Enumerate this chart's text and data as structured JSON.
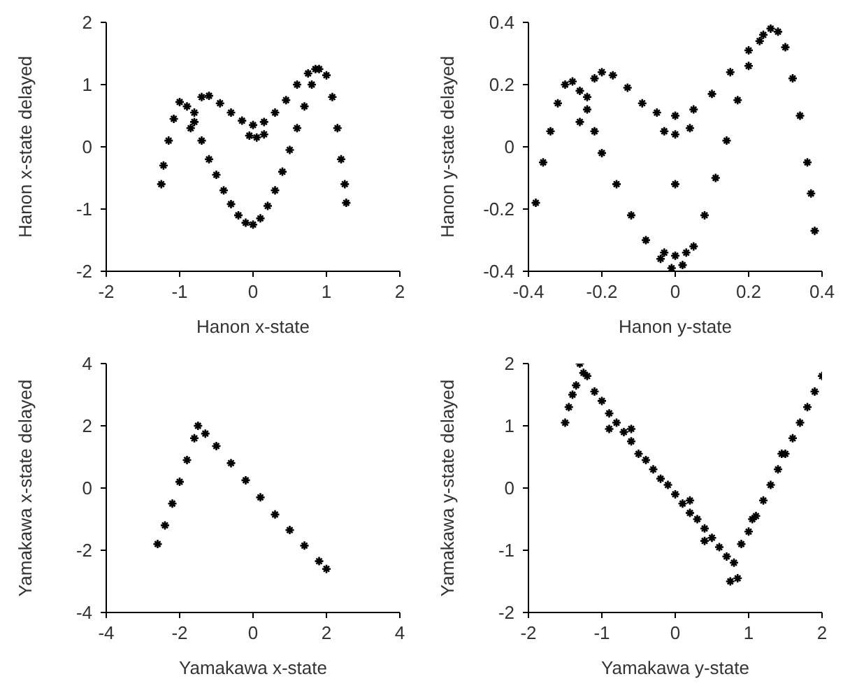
{
  "chart_data": [
    {
      "type": "scatter",
      "xlabel": "Hanon x-state",
      "ylabel": "Hanon x-state delayed",
      "xlim": [
        -2,
        2
      ],
      "ylim": [
        -2,
        2
      ],
      "xticks": [
        -2,
        -1,
        0,
        1,
        2
      ],
      "yticks": [
        -2,
        -1,
        0,
        1,
        2
      ],
      "grid": false,
      "legend": false,
      "marker": "cross",
      "series": [
        {
          "color": "#000000",
          "x": [
            -1.25,
            -1.22,
            -1.15,
            -1.08,
            -1.0,
            -0.9,
            -0.8,
            -0.7,
            -0.6,
            -0.5,
            -0.4,
            -0.3,
            -0.2,
            -0.1,
            0,
            0.1,
            0.2,
            0.3,
            0.4,
            0.5,
            0.6,
            0.7,
            0.8,
            0.9,
            1.0,
            1.08,
            1.15,
            1.2,
            1.25,
            1.27,
            -0.85,
            -0.8,
            -0.7,
            -0.6,
            -0.45,
            -0.3,
            -0.15,
            0,
            0.15,
            0.3,
            0.45,
            0.6,
            0.75,
            0.85,
            -0.05,
            0.05,
            0.15
          ],
          "values": [
            -0.6,
            -0.3,
            0.1,
            0.45,
            0.72,
            0.65,
            0.4,
            0.1,
            -0.2,
            -0.45,
            -0.7,
            -0.92,
            -1.1,
            -1.22,
            -1.25,
            -1.15,
            -0.95,
            -0.7,
            -0.4,
            -0.05,
            0.3,
            0.65,
            1.0,
            1.25,
            1.15,
            0.8,
            0.3,
            -0.2,
            -0.6,
            -0.9,
            0.3,
            0.55,
            0.8,
            0.82,
            0.7,
            0.55,
            0.42,
            0.35,
            0.4,
            0.55,
            0.75,
            1.0,
            1.18,
            1.25,
            0.18,
            0.15,
            0.2
          ]
        }
      ]
    },
    {
      "type": "scatter",
      "xlabel": "Hanon y-state",
      "ylabel": "Hanon y-state delayed",
      "xlim": [
        -0.4,
        0.4
      ],
      "ylim": [
        -0.4,
        0.4
      ],
      "xticks": [
        -0.4,
        -0.2,
        0,
        0.2,
        0.4
      ],
      "yticks": [
        -0.4,
        -0.2,
        0,
        0.2,
        0.4
      ],
      "grid": false,
      "legend": false,
      "marker": "cross",
      "series": [
        {
          "color": "#000000",
          "x": [
            -0.38,
            -0.36,
            -0.34,
            -0.32,
            -0.3,
            -0.28,
            -0.26,
            -0.24,
            -0.22,
            -0.2,
            -0.16,
            -0.12,
            -0.08,
            -0.04,
            -0.01,
            0.02,
            0.05,
            0.08,
            0.11,
            0.14,
            0.17,
            0.2,
            0.23,
            0.26,
            0.28,
            0.3,
            0.32,
            0.34,
            0.36,
            0.37,
            0.38,
            -0.26,
            -0.24,
            -0.22,
            -0.2,
            -0.17,
            -0.13,
            -0.09,
            -0.05,
            0,
            0.05,
            0.1,
            0.15,
            0.2,
            0.24,
            -0.03,
            0,
            0.04,
            0,
            -0.03,
            0,
            0.03
          ],
          "values": [
            -0.18,
            -0.05,
            0.05,
            0.14,
            0.2,
            0.21,
            0.18,
            0.12,
            0.05,
            -0.02,
            -0.12,
            -0.22,
            -0.3,
            -0.36,
            -0.39,
            -0.38,
            -0.32,
            -0.22,
            -0.1,
            0.02,
            0.15,
            0.26,
            0.34,
            0.38,
            0.37,
            0.32,
            0.22,
            0.1,
            -0.05,
            -0.15,
            -0.27,
            0.08,
            0.16,
            0.22,
            0.24,
            0.23,
            0.19,
            0.14,
            0.11,
            0.1,
            0.12,
            0.17,
            0.24,
            0.31,
            0.36,
            0.05,
            0.04,
            0.06,
            -0.12,
            -0.34,
            -0.35,
            -0.34
          ]
        }
      ]
    },
    {
      "type": "scatter",
      "xlabel": "Yamakawa x-state",
      "ylabel": "Yamakawa x-state delayed",
      "xlim": [
        -4,
        4
      ],
      "ylim": [
        -4,
        4
      ],
      "xticks": [
        -4,
        -2,
        0,
        2,
        4
      ],
      "yticks": [
        -4,
        -2,
        0,
        2,
        4
      ],
      "grid": false,
      "legend": false,
      "marker": "cross",
      "series": [
        {
          "color": "#000000",
          "x": [
            -2.6,
            -2.4,
            -2.2,
            -2.0,
            -1.8,
            -1.6,
            -1.5,
            -1.3,
            -1.0,
            -0.6,
            -0.2,
            0.2,
            0.6,
            1.0,
            1.4,
            1.8,
            2.0
          ],
          "values": [
            -1.8,
            -1.2,
            -0.5,
            0.2,
            0.9,
            1.6,
            2.0,
            1.75,
            1.35,
            0.8,
            0.25,
            -0.3,
            -0.85,
            -1.35,
            -1.85,
            -2.35,
            -2.6
          ]
        }
      ]
    },
    {
      "type": "scatter",
      "xlabel": "Yamakawa y-state",
      "ylabel": "Yamakawa y-state delayed",
      "xlim": [
        -2,
        2
      ],
      "ylim": [
        -2,
        2
      ],
      "xticks": [
        -2,
        -1,
        0,
        1,
        2
      ],
      "yticks": [
        -2,
        -1,
        0,
        1,
        2
      ],
      "grid": false,
      "legend": false,
      "marker": "cross",
      "series": [
        {
          "color": "#000000",
          "x": [
            -1.5,
            -1.45,
            -1.4,
            -1.35,
            -1.3,
            -1.25,
            -1.2,
            -1.1,
            -1.0,
            -0.9,
            -0.8,
            -0.7,
            -0.6,
            -0.5,
            -0.4,
            -0.3,
            -0.2,
            -0.1,
            0,
            0.1,
            0.2,
            0.3,
            0.4,
            0.5,
            0.6,
            0.7,
            0.75,
            0.85,
            0.8,
            0.9,
            1.0,
            1.1,
            1.2,
            1.3,
            1.4,
            1.5,
            1.6,
            1.7,
            1.8,
            1.9,
            2.0,
            -0.9,
            -0.6,
            0.2,
            0.4,
            1.05,
            1.45
          ],
          "values": [
            1.05,
            1.3,
            1.5,
            1.65,
            2.0,
            1.85,
            1.8,
            1.55,
            1.4,
            1.2,
            1.05,
            0.9,
            0.75,
            0.55,
            0.45,
            0.3,
            0.15,
            0.05,
            -0.1,
            -0.25,
            -0.4,
            -0.5,
            -0.65,
            -0.8,
            -0.95,
            -1.1,
            -1.5,
            -1.45,
            -1.2,
            -0.9,
            -0.7,
            -0.45,
            -0.2,
            0.05,
            0.3,
            0.55,
            0.8,
            1.05,
            1.3,
            1.55,
            1.8,
            0.95,
            0.95,
            -0.2,
            -0.85,
            -0.5,
            0.55
          ]
        }
      ]
    }
  ]
}
